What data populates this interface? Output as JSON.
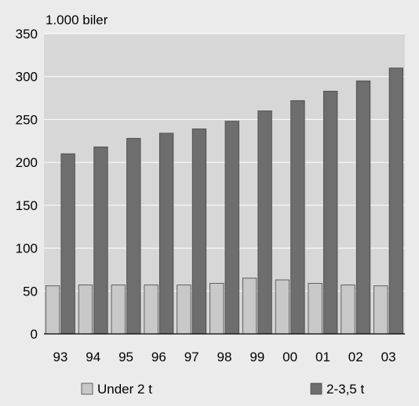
{
  "chart_data": {
    "type": "bar",
    "title": "",
    "unit_label": "1.000 biler",
    "xlabel": "",
    "ylabel": "",
    "categories": [
      "93",
      "94",
      "95",
      "96",
      "97",
      "98",
      "99",
      "00",
      "01",
      "02",
      "03"
    ],
    "series": [
      {
        "name": "Under 2 t",
        "color": "#c8c8c8",
        "values": [
          56,
          57,
          57,
          57,
          57,
          59,
          65,
          63,
          59,
          57,
          56
        ]
      },
      {
        "name": "2-3,5 t",
        "color": "#6e6e6e",
        "values": [
          210,
          218,
          228,
          234,
          239,
          248,
          260,
          272,
          283,
          295,
          310
        ]
      }
    ],
    "yticks": [
      0,
      50,
      100,
      150,
      200,
      250,
      300,
      350
    ],
    "ylim": [
      0,
      350
    ],
    "grid": true,
    "plot_background": "#d7d7d7",
    "legend_position": "bottom"
  }
}
